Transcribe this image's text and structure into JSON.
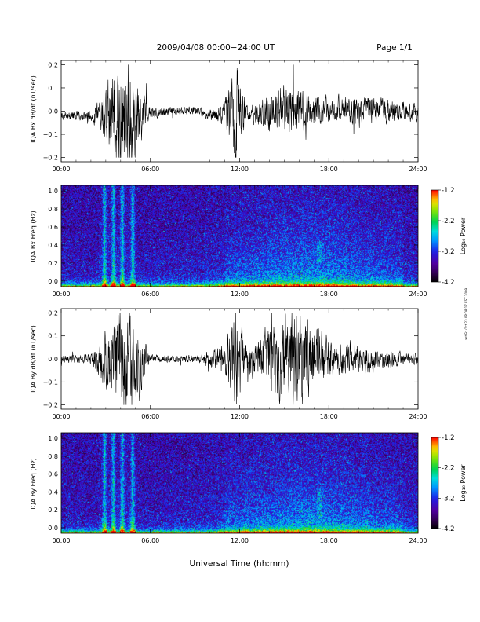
{
  "header": {
    "date_title": "2009/04/08  00:00−24:00 UT",
    "page_label": "Page 1/1"
  },
  "x_axis_title": "Universal Time (hh:mm)",
  "side_stamp": "ast Fri Oct 23 08:08:17 EST 2009",
  "colorbar": {
    "label": "Log₁₀ Power",
    "ticks": [
      "-1.2",
      "-2.2",
      "-3.2",
      "-4.2"
    ]
  },
  "chart_data": [
    {
      "type": "line",
      "title": "",
      "ylabel": "IQA Bx dB/dt (nT/sec)",
      "xlabel": "",
      "xlim": [
        "00:00",
        "24:00"
      ],
      "ylim": [
        -0.2,
        0.2
      ],
      "xtick_labels": [
        "00:00",
        "06:00",
        "12:00",
        "18:00",
        "24:00"
      ],
      "ytick_labels": [
        "0.2",
        "0.1",
        "0.0",
        "−0.1",
        "−0.2"
      ],
      "series": [
        {
          "color": "#000000",
          "x_hours": [
            0,
            1,
            2,
            2.7,
            3.5,
            4.1,
            4.8,
            6,
            7.5,
            9,
            10,
            11,
            11.7,
            12.5,
            13.5,
            14.5,
            15.5,
            16.5,
            17.5,
            18.5,
            19.5,
            20.5,
            21.5,
            22.5,
            24
          ],
          "amplitude": [
            0.015,
            0.018,
            0.022,
            0.06,
            0.2,
            0.2,
            0.2,
            0.02,
            0.015,
            0.015,
            0.02,
            0.04,
            0.2,
            0.025,
            0.05,
            0.09,
            0.1,
            0.07,
            0.05,
            0.05,
            0.05,
            0.05,
            0.045,
            0.04,
            0.035
          ],
          "offset": [
            -0.02,
            -0.02,
            -0.02,
            -0.02,
            -0.02,
            -0.02,
            -0.02,
            -0.01,
            0.0,
            0.005,
            -0.02,
            -0.01,
            0.0,
            -0.005,
            -0.01,
            0.0,
            0.0,
            0.0,
            0.0,
            0.0,
            0.0,
            0.0,
            0.0,
            0.0,
            -0.005
          ]
        }
      ]
    },
    {
      "type": "heatmap",
      "title": "",
      "ylabel": "IQA Bx Freq (Hz)",
      "xlabel": "",
      "xlim": [
        "00:00",
        "24:00"
      ],
      "ylim": [
        0.0,
        1.0
      ],
      "xtick_labels": [
        "00:00",
        "06:00",
        "12:00",
        "18:00",
        "24:00"
      ],
      "ytick_labels": [
        "1.0",
        "0.8",
        "0.6",
        "0.4",
        "0.2",
        "0.0"
      ],
      "color_scale": "log10 power",
      "clim": [
        -4.2,
        -1.2
      ],
      "burst_hours": [
        2.9,
        3.5,
        4.1,
        4.8
      ],
      "enhanced_hours": [
        11.5,
        22.5
      ],
      "band_feature": {
        "hours": [
          17.2,
          17.6
        ],
        "freq_hz": [
          0.25,
          0.45
        ]
      }
    },
    {
      "type": "line",
      "title": "",
      "ylabel": "IQA By dB/dt (nT/sec)",
      "xlabel": "",
      "xlim": [
        "00:00",
        "24:00"
      ],
      "ylim": [
        -0.2,
        0.2
      ],
      "xtick_labels": [
        "00:00",
        "06:00",
        "12:00",
        "18:00",
        "24:00"
      ],
      "ytick_labels": [
        "0.2",
        "0.1",
        "0.0",
        "−0.1",
        "−0.2"
      ],
      "series": [
        {
          "color": "#000000",
          "x_hours": [
            0,
            1,
            2,
            2.7,
            3.5,
            4.1,
            4.8,
            6,
            7.5,
            9,
            10,
            11,
            11.7,
            12.5,
            13.5,
            14.5,
            15.5,
            16.5,
            17.5,
            18.5,
            19.5,
            20.5,
            21.5,
            22.5,
            24
          ],
          "amplitude": [
            0.015,
            0.015,
            0.02,
            0.07,
            0.2,
            0.2,
            0.2,
            0.015,
            0.012,
            0.015,
            0.03,
            0.05,
            0.2,
            0.05,
            0.09,
            0.14,
            0.18,
            0.15,
            0.1,
            0.06,
            0.06,
            0.05,
            0.04,
            0.03,
            0.02
          ],
          "offset": [
            0,
            0,
            0,
            0,
            0,
            0,
            0,
            0,
            0,
            0,
            0,
            0,
            0,
            0,
            0,
            0,
            0,
            0,
            0,
            0,
            0,
            0,
            0,
            0,
            0
          ]
        }
      ]
    },
    {
      "type": "heatmap",
      "title": "",
      "ylabel": "IQA By Freq (Hz)",
      "xlabel": "",
      "xlim": [
        "00:00",
        "24:00"
      ],
      "ylim": [
        0.0,
        1.0
      ],
      "xtick_labels": [
        "00:00",
        "06:00",
        "12:00",
        "18:00",
        "24:00"
      ],
      "ytick_labels": [
        "1.0",
        "0.8",
        "0.6",
        "0.4",
        "0.2",
        "0.0"
      ],
      "color_scale": "log10 power",
      "clim": [
        -4.2,
        -1.2
      ],
      "burst_hours": [
        2.9,
        3.5,
        4.1,
        4.8
      ],
      "enhanced_hours": [
        11.5,
        22.5
      ],
      "band_feature": {
        "hours": [
          17.2,
          17.6
        ],
        "freq_hz": [
          0.15,
          0.45
        ]
      }
    }
  ]
}
